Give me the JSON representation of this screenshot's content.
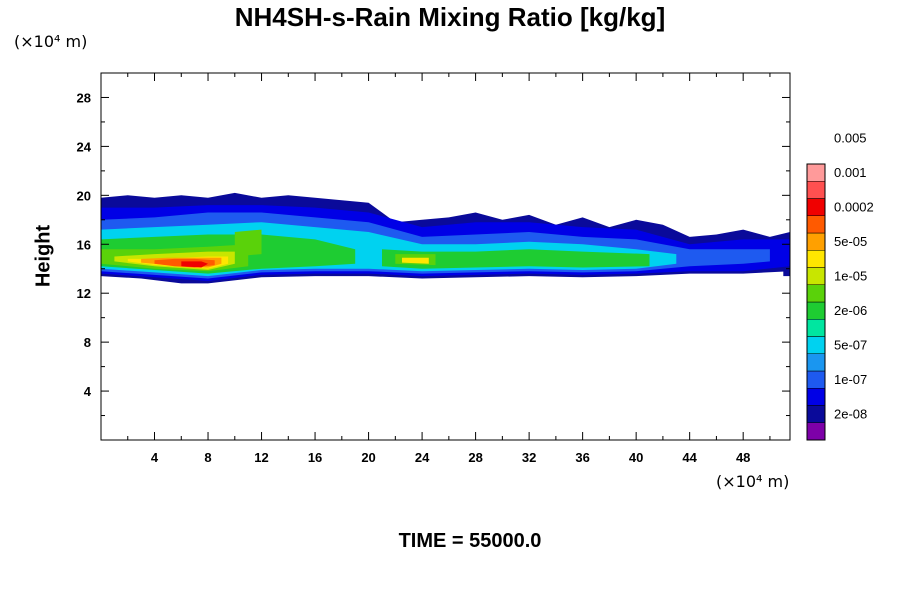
{
  "chart_data": {
    "type": "heatmap",
    "title": "NH4SH-s-Rain Mixing Ratio [kg/kg]",
    "ylabel": "Height",
    "x_unit": "(×10⁴ m)",
    "y_unit": "(×10⁴ m)",
    "xlim": [
      0,
      51.5
    ],
    "ylim": [
      0,
      30
    ],
    "x_ticks": [
      4,
      8,
      12,
      16,
      20,
      24,
      28,
      32,
      36,
      40,
      44,
      48
    ],
    "y_ticks": [
      4,
      8,
      12,
      16,
      20,
      24,
      28
    ],
    "colorbar": {
      "colors": [
        "#7d00a8",
        "#0a0a9a",
        "#0000e6",
        "#1e5af0",
        "#1a96f0",
        "#00d2f0",
        "#00e6a0",
        "#1ecc32",
        "#5ad20a",
        "#c8e600",
        "#ffe600",
        "#ffa000",
        "#ff5a00",
        "#f00000",
        "#ff5050",
        "#ff9a9a"
      ],
      "labels": [
        "2e-08",
        "1e-07",
        "5e-07",
        "2e-06",
        "1e-05",
        "5e-05",
        "0.0002",
        "0.001",
        "0.005"
      ]
    },
    "field_regions": [
      {
        "level": 1,
        "points": [
          [
            0,
            13.4
          ],
          [
            3,
            13.2
          ],
          [
            6,
            12.8
          ],
          [
            8,
            12.8
          ],
          [
            12,
            13.3
          ],
          [
            16,
            13.4
          ],
          [
            20,
            13.4
          ],
          [
            24,
            13.2
          ],
          [
            28,
            13.3
          ],
          [
            32,
            13.4
          ],
          [
            36,
            13.3
          ],
          [
            40,
            13.4
          ],
          [
            44,
            13.6
          ],
          [
            48,
            13.6
          ],
          [
            51.5,
            13.8
          ],
          [
            51.5,
            17.0
          ],
          [
            50,
            16.6
          ],
          [
            48,
            17.2
          ],
          [
            46,
            16.8
          ],
          [
            44,
            16.6
          ],
          [
            42,
            17.6
          ],
          [
            40,
            18.0
          ],
          [
            38,
            17.4
          ],
          [
            36,
            18.2
          ],
          [
            34,
            17.6
          ],
          [
            32,
            18.4
          ],
          [
            30,
            18.0
          ],
          [
            28,
            18.6
          ],
          [
            26,
            18.2
          ],
          [
            24,
            18.0
          ],
          [
            22,
            17.8
          ],
          [
            20,
            19.4
          ],
          [
            18,
            19.6
          ],
          [
            16,
            19.8
          ],
          [
            14,
            20.0
          ],
          [
            12,
            19.8
          ],
          [
            10,
            20.2
          ],
          [
            8,
            19.8
          ],
          [
            6,
            20.0
          ],
          [
            4,
            19.8
          ],
          [
            2,
            20.0
          ],
          [
            0,
            19.8
          ]
        ]
      },
      {
        "level": 2,
        "points": [
          [
            0,
            13.6
          ],
          [
            4,
            13.3
          ],
          [
            8,
            13.0
          ],
          [
            12,
            13.5
          ],
          [
            16,
            13.6
          ],
          [
            20,
            13.6
          ],
          [
            24,
            13.4
          ],
          [
            28,
            13.5
          ],
          [
            32,
            13.6
          ],
          [
            36,
            13.5
          ],
          [
            40,
            13.6
          ],
          [
            44,
            13.8
          ],
          [
            48,
            13.8
          ],
          [
            51.5,
            14.2
          ],
          [
            51.5,
            16.4
          ],
          [
            48,
            16.4
          ],
          [
            44,
            16.0
          ],
          [
            40,
            17.2
          ],
          [
            36,
            17.4
          ],
          [
            32,
            17.8
          ],
          [
            28,
            17.8
          ],
          [
            24,
            17.4
          ],
          [
            20,
            18.6
          ],
          [
            16,
            19.0
          ],
          [
            12,
            19.2
          ],
          [
            8,
            19.2
          ],
          [
            4,
            19.0
          ],
          [
            0,
            19.0
          ]
        ]
      },
      {
        "level": 3,
        "points": [
          [
            0,
            13.8
          ],
          [
            4,
            13.5
          ],
          [
            8,
            13.2
          ],
          [
            12,
            13.7
          ],
          [
            16,
            13.8
          ],
          [
            20,
            13.8
          ],
          [
            24,
            13.6
          ],
          [
            28,
            13.7
          ],
          [
            32,
            13.8
          ],
          [
            36,
            13.7
          ],
          [
            40,
            13.8
          ],
          [
            44,
            14.2
          ],
          [
            48,
            14.4
          ],
          [
            50,
            14.6
          ],
          [
            50,
            15.6
          ],
          [
            44,
            15.6
          ],
          [
            40,
            16.4
          ],
          [
            36,
            16.6
          ],
          [
            32,
            17.0
          ],
          [
            28,
            16.8
          ],
          [
            24,
            16.6
          ],
          [
            20,
            17.8
          ],
          [
            16,
            18.2
          ],
          [
            12,
            18.6
          ],
          [
            8,
            18.6
          ],
          [
            4,
            18.2
          ],
          [
            0,
            18.0
          ]
        ]
      },
      {
        "level": 5,
        "points": [
          [
            0,
            14.0
          ],
          [
            4,
            13.7
          ],
          [
            8,
            13.4
          ],
          [
            12,
            13.9
          ],
          [
            16,
            14.0
          ],
          [
            20,
            14.0
          ],
          [
            24,
            13.8
          ],
          [
            28,
            13.9
          ],
          [
            32,
            14.0
          ],
          [
            36,
            13.9
          ],
          [
            40,
            14.0
          ],
          [
            43,
            14.4
          ],
          [
            43,
            15.2
          ],
          [
            40,
            15.6
          ],
          [
            36,
            16.0
          ],
          [
            32,
            16.2
          ],
          [
            28,
            16.0
          ],
          [
            24,
            16.0
          ],
          [
            20,
            17.0
          ],
          [
            16,
            17.4
          ],
          [
            12,
            17.8
          ],
          [
            8,
            17.6
          ],
          [
            4,
            17.4
          ],
          [
            0,
            17.2
          ]
        ]
      },
      {
        "level": 7,
        "points": [
          [
            0,
            14.2
          ],
          [
            4,
            13.9
          ],
          [
            8,
            13.6
          ],
          [
            12,
            14.0
          ],
          [
            16,
            14.2
          ],
          [
            19,
            14.4
          ],
          [
            19,
            15.6
          ],
          [
            16,
            16.4
          ],
          [
            12,
            16.8
          ],
          [
            8,
            16.8
          ],
          [
            4,
            16.6
          ],
          [
            0,
            16.4
          ]
        ]
      },
      {
        "level": 7,
        "points": [
          [
            21,
            14.2
          ],
          [
            24,
            14.0
          ],
          [
            28,
            14.1
          ],
          [
            32,
            14.2
          ],
          [
            36,
            14.1
          ],
          [
            41,
            14.2
          ],
          [
            41,
            15.2
          ],
          [
            36,
            15.4
          ],
          [
            32,
            15.6
          ],
          [
            28,
            15.4
          ],
          [
            24,
            15.4
          ],
          [
            21,
            15.6
          ]
        ]
      },
      {
        "level": 8,
        "points": [
          [
            0,
            14.4
          ],
          [
            4,
            14.0
          ],
          [
            8,
            13.8
          ],
          [
            11,
            14.2
          ],
          [
            11,
            16.0
          ],
          [
            8,
            15.8
          ],
          [
            4,
            15.6
          ],
          [
            0,
            15.6
          ]
        ]
      },
      {
        "level": 8,
        "points": [
          [
            10,
            15.0
          ],
          [
            12,
            15.2
          ],
          [
            12,
            17.2
          ],
          [
            10,
            17.0
          ]
        ]
      },
      {
        "level": 8,
        "points": [
          [
            22,
            14.4
          ],
          [
            25,
            14.3
          ],
          [
            25,
            15.2
          ],
          [
            22,
            15.2
          ]
        ]
      },
      {
        "level": 9,
        "points": [
          [
            1,
            14.6
          ],
          [
            4,
            14.2
          ],
          [
            8,
            13.9
          ],
          [
            10,
            14.4
          ],
          [
            10,
            15.4
          ],
          [
            8,
            15.4
          ],
          [
            4,
            15.2
          ],
          [
            1,
            15.0
          ]
        ]
      },
      {
        "level": 10,
        "points": [
          [
            2,
            14.6
          ],
          [
            4,
            14.3
          ],
          [
            8,
            14.0
          ],
          [
            9.5,
            14.4
          ],
          [
            9.5,
            15.0
          ],
          [
            8,
            15.0
          ],
          [
            4,
            14.8
          ],
          [
            2,
            14.8
          ]
        ]
      },
      {
        "level": 10,
        "points": [
          [
            22.5,
            14.5
          ],
          [
            24.5,
            14.4
          ],
          [
            24.5,
            14.9
          ],
          [
            22.5,
            14.9
          ]
        ]
      },
      {
        "level": 11,
        "points": [
          [
            3,
            14.5
          ],
          [
            5,
            14.3
          ],
          [
            8,
            14.1
          ],
          [
            9,
            14.4
          ],
          [
            9,
            14.9
          ],
          [
            7,
            14.9
          ],
          [
            5,
            14.9
          ],
          [
            3,
            14.8
          ]
        ]
      },
      {
        "level": 12,
        "points": [
          [
            4,
            14.4
          ],
          [
            5.5,
            14.2
          ],
          [
            7,
            14.1
          ],
          [
            8.5,
            14.3
          ],
          [
            8.5,
            14.7
          ],
          [
            7,
            14.8
          ],
          [
            5.5,
            14.8
          ],
          [
            4,
            14.7
          ]
        ]
      },
      {
        "level": 13,
        "points": [
          [
            6,
            14.2
          ],
          [
            7.5,
            14.1
          ],
          [
            8,
            14.4
          ],
          [
            7.5,
            14.6
          ],
          [
            6,
            14.6
          ]
        ]
      },
      {
        "level": 1,
        "points": [
          [
            51,
            13.4
          ],
          [
            51.5,
            13.4
          ],
          [
            51.5,
            13.9
          ],
          [
            51,
            13.9
          ]
        ]
      }
    ]
  }
}
